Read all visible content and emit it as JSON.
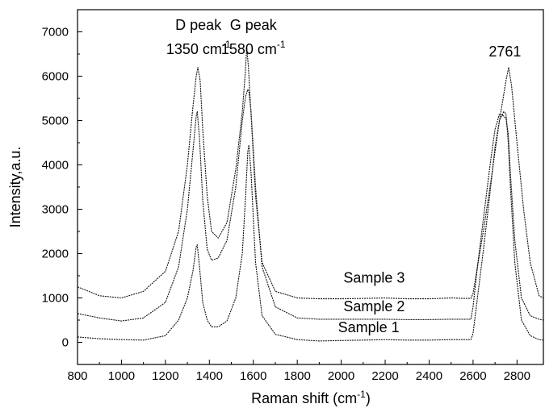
{
  "chart_data": {
    "type": "line",
    "xlabel": "Raman shift (cm",
    "xlabel_sup": "-1",
    "xlabel_tail": ")",
    "ylabel": "Intensity,a.u.",
    "xlim": [
      800,
      2920
    ],
    "ylim": [
      -500,
      7500
    ],
    "x_ticks": [
      800,
      1000,
      1200,
      1400,
      1600,
      1800,
      2000,
      2200,
      2400,
      2600,
      2800
    ],
    "y_ticks": [
      0,
      1000,
      2000,
      3000,
      4000,
      5000,
      6000,
      7000
    ],
    "grid": false,
    "annotations": [
      {
        "id": "d-peak-name",
        "text": "D peak",
        "x": 1350,
        "y": 7050
      },
      {
        "id": "d-peak-pos",
        "text": "1350 cm",
        "sup": "-1",
        "x": 1350,
        "y": 6500
      },
      {
        "id": "g-peak-name",
        "text": "G peak",
        "x": 1600,
        "y": 7050
      },
      {
        "id": "g-peak-pos",
        "text": "1580 cm",
        "sup": "-1",
        "x": 1600,
        "y": 6500
      },
      {
        "id": "2d-peak-pos",
        "text": "2761",
        "x": 2745,
        "y": 6450
      }
    ],
    "series": [
      {
        "name": "Sample 1",
        "label_x": 2125,
        "label_y": 230,
        "x": [
          800,
          900,
          1000,
          1100,
          1200,
          1260,
          1300,
          1325,
          1340,
          1345,
          1355,
          1370,
          1390,
          1410,
          1440,
          1480,
          1520,
          1550,
          1565,
          1575,
          1580,
          1590,
          1610,
          1640,
          1700,
          1800,
          1900,
          2000,
          2100,
          2200,
          2300,
          2400,
          2500,
          2560,
          2590,
          2600,
          2620,
          2650,
          2680,
          2700,
          2720,
          2740,
          2750,
          2760,
          2770,
          2790,
          2820,
          2860,
          2900,
          2920
        ],
        "y": [
          120,
          80,
          60,
          50,
          150,
          500,
          1000,
          1600,
          2150,
          2200,
          1700,
          900,
          500,
          350,
          350,
          480,
          1000,
          2000,
          3300,
          4300,
          4450,
          3800,
          1800,
          600,
          180,
          60,
          30,
          40,
          50,
          60,
          50,
          50,
          60,
          60,
          60,
          200,
          1000,
          2200,
          3500,
          4400,
          5000,
          5200,
          5150,
          4500,
          3500,
          1800,
          500,
          150,
          60,
          50
        ]
      },
      {
        "name": "Sample 2",
        "label_x": 2150,
        "label_y": 700,
        "x": [
          800,
          900,
          1000,
          1100,
          1200,
          1260,
          1300,
          1325,
          1340,
          1345,
          1355,
          1370,
          1390,
          1410,
          1440,
          1480,
          1520,
          1550,
          1565,
          1575,
          1580,
          1590,
          1610,
          1640,
          1700,
          1800,
          1900,
          2000,
          2100,
          2200,
          2300,
          2400,
          2500,
          2560,
          2590,
          2600,
          2620,
          2650,
          2680,
          2700,
          2720,
          2740,
          2750,
          2760,
          2770,
          2790,
          2820,
          2860,
          2900,
          2920
        ],
        "y": [
          650,
          550,
          480,
          550,
          900,
          1700,
          3000,
          4300,
          5100,
          5200,
          4600,
          3200,
          2100,
          1850,
          1900,
          2300,
          3500,
          5000,
          5550,
          5700,
          5650,
          5200,
          3500,
          1700,
          800,
          550,
          520,
          520,
          520,
          520,
          510,
          510,
          520,
          520,
          520,
          800,
          1700,
          2900,
          4100,
          4800,
          5150,
          5100,
          5050,
          4700,
          3800,
          2300,
          1000,
          600,
          520,
          500
        ]
      },
      {
        "name": "Sample 3",
        "label_x": 2150,
        "label_y": 1350,
        "x": [
          800,
          900,
          1000,
          1100,
          1200,
          1260,
          1300,
          1325,
          1340,
          1348,
          1358,
          1370,
          1390,
          1410,
          1440,
          1480,
          1520,
          1550,
          1563,
          1570,
          1578,
          1590,
          1610,
          1640,
          1700,
          1800,
          1900,
          2000,
          2100,
          2200,
          2300,
          2400,
          2500,
          2560,
          2590,
          2600,
          2620,
          2650,
          2680,
          2700,
          2720,
          2740,
          2750,
          2762,
          2775,
          2800,
          2830,
          2860,
          2900,
          2920
        ],
        "y": [
          1250,
          1050,
          1000,
          1150,
          1600,
          2500,
          4000,
          5300,
          6000,
          6200,
          5900,
          4800,
          3300,
          2500,
          2350,
          2700,
          3900,
          5200,
          6050,
          6650,
          6200,
          5100,
          3300,
          1800,
          1150,
          1000,
          980,
          980,
          990,
          1000,
          980,
          980,
          1000,
          990,
          990,
          1100,
          1700,
          2600,
          3600,
          4300,
          5000,
          5600,
          5900,
          6200,
          5800,
          4500,
          3000,
          1800,
          1050,
          1000
        ]
      }
    ]
  }
}
